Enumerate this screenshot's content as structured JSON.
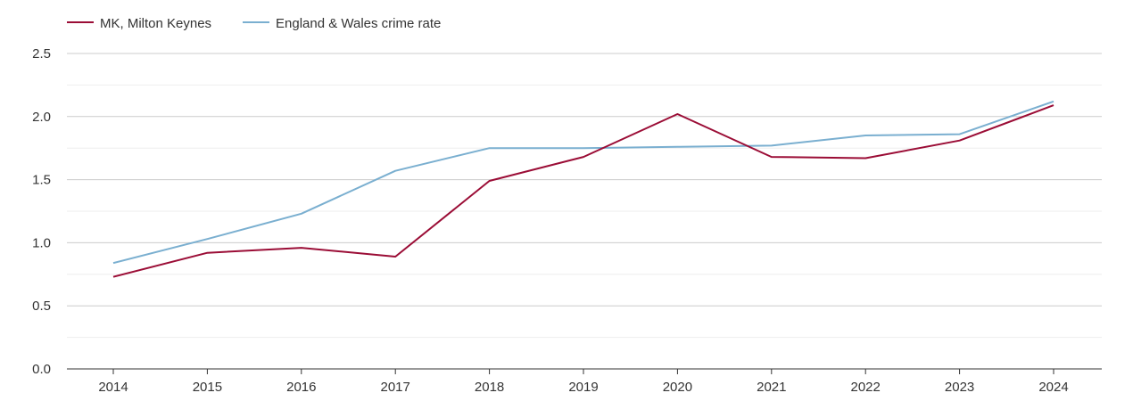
{
  "chart_data": {
    "type": "line",
    "title": "",
    "xlabel": "",
    "ylabel": "",
    "x": [
      "2014",
      "2015",
      "2016",
      "2017",
      "2018",
      "2019",
      "2020",
      "2021",
      "2022",
      "2023",
      "2024"
    ],
    "ylim": [
      0,
      2.5
    ],
    "yticks": [
      "0.0",
      "0.5",
      "1.0",
      "1.5",
      "2.0",
      "2.5"
    ],
    "grid": true,
    "legend_position": "top-left",
    "series": [
      {
        "name": "MK, Milton Keynes",
        "color": "#9b0d36",
        "values": [
          0.73,
          0.92,
          0.96,
          0.89,
          1.49,
          1.68,
          2.02,
          1.68,
          1.67,
          1.81,
          2.09
        ]
      },
      {
        "name": "England & Wales crime rate",
        "color": "#7aafd0",
        "values": [
          0.84,
          1.03,
          1.23,
          1.57,
          1.75,
          1.75,
          1.76,
          1.77,
          1.85,
          1.86,
          2.12
        ]
      }
    ]
  }
}
